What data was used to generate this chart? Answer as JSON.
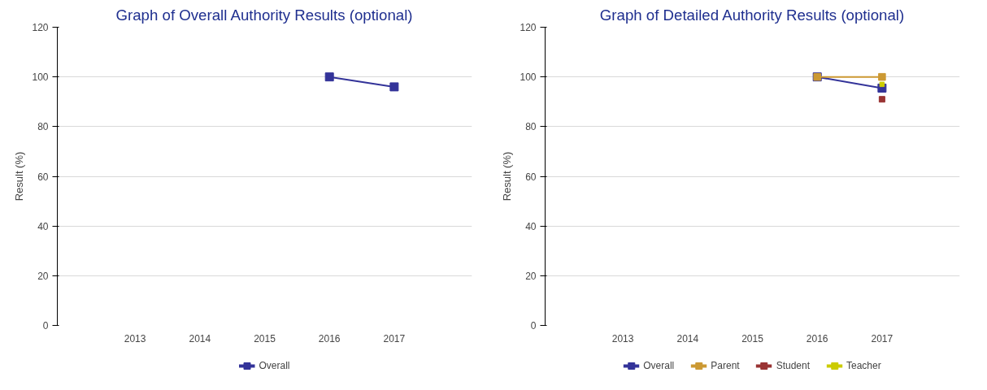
{
  "chart_data": [
    {
      "type": "line",
      "title": "Graph of Overall Authority Results (optional)",
      "ylabel": "Result (%)",
      "categories": [
        "2013",
        "2014",
        "2015",
        "2016",
        "2017"
      ],
      "ylim": [
        0,
        120
      ],
      "yticks": [
        0,
        20,
        40,
        60,
        80,
        100,
        120
      ],
      "grid": "y",
      "legend": "bottom",
      "marker": "square",
      "series": [
        {
          "name": "Overall",
          "color": "#333399",
          "values": [
            null,
            null,
            null,
            100,
            96
          ]
        }
      ]
    },
    {
      "type": "line",
      "title": "Graph of Detailed Authority Results (optional)",
      "ylabel": "Result (%)",
      "categories": [
        "2013",
        "2014",
        "2015",
        "2016",
        "2017"
      ],
      "ylim": [
        0,
        120
      ],
      "yticks": [
        0,
        20,
        40,
        60,
        80,
        100,
        120
      ],
      "grid": "y",
      "legend": "bottom",
      "marker": "square",
      "series": [
        {
          "name": "Overall",
          "color": "#333399",
          "values": [
            null,
            null,
            null,
            100,
            95.5
          ]
        },
        {
          "name": "Parent",
          "color": "#cc9933",
          "values": [
            null,
            null,
            null,
            100,
            100
          ]
        },
        {
          "name": "Student",
          "color": "#993333",
          "values": [
            null,
            null,
            null,
            null,
            91
          ]
        },
        {
          "name": "Teacher",
          "color": "#cccc00",
          "values": [
            null,
            null,
            null,
            null,
            97
          ]
        }
      ]
    }
  ]
}
